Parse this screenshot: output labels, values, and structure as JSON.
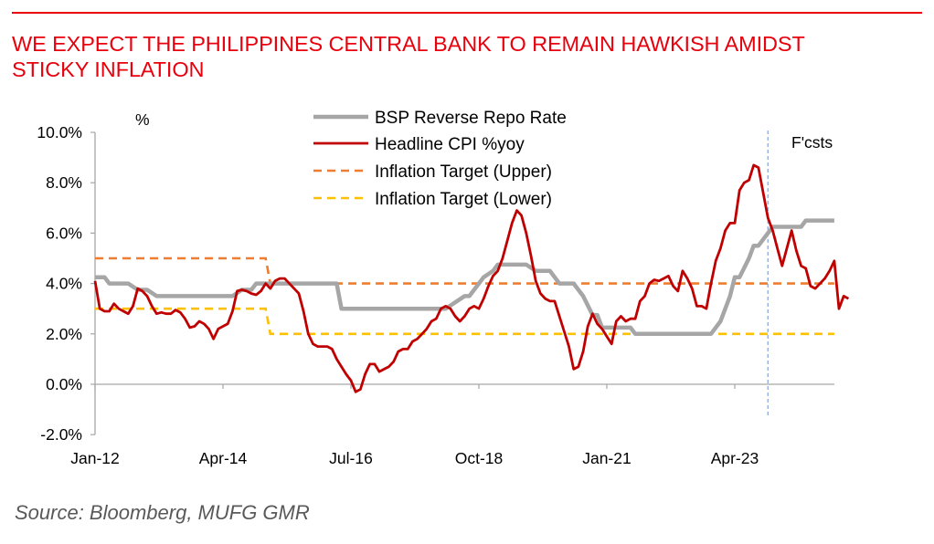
{
  "header": {
    "title_line1": "WE EXPECT THE PHILIPPINES CENTRAL BANK TO REMAIN HAWKISH AMIDST",
    "title_line2": "STICKY INFLATION"
  },
  "footer": {
    "source": "Source: Bloomberg, MUFG GMR"
  },
  "colors": {
    "title": "#e8000d",
    "repo": "#a6a6a6",
    "cpi": "#c00000",
    "upper": "#ed7d31",
    "lower": "#ffc000",
    "forecast_line": "#8eaadb"
  },
  "chart_data": {
    "type": "line",
    "title": "",
    "xlabel": "",
    "ylabel": "%",
    "ylim": [
      -2,
      10
    ],
    "yticks": [
      -2,
      0,
      2,
      4,
      6,
      8,
      10
    ],
    "ytick_labels": [
      "-2.0%",
      "0.0%",
      "2.0%",
      "4.0%",
      "6.0%",
      "8.0%",
      "10.0%"
    ],
    "x_unit": "months since Jan-2012",
    "xlim": [
      0,
      156
    ],
    "xticks": [
      0,
      27,
      54,
      81,
      108,
      135
    ],
    "xtick_labels": [
      "Jan-12",
      "Apr-14",
      "Jul-16",
      "Oct-18",
      "Jan-21",
      "Apr-23"
    ],
    "grid": false,
    "legend_position": "top-center",
    "forecast_marker": {
      "x": 142,
      "label": "F'csts"
    },
    "series": [
      {
        "name": "BSP Reverse Repo Rate",
        "style": "solid-thick",
        "color_key": "repo",
        "points": [
          [
            0,
            4.25
          ],
          [
            2,
            4.25
          ],
          [
            3,
            4.0
          ],
          [
            7,
            4.0
          ],
          [
            9,
            3.75
          ],
          [
            11,
            3.75
          ],
          [
            13,
            3.5
          ],
          [
            29,
            3.5
          ],
          [
            31,
            3.75
          ],
          [
            33,
            3.75
          ],
          [
            34,
            4.0
          ],
          [
            51,
            4.0
          ],
          [
            52,
            3.0
          ],
          [
            74,
            3.0
          ],
          [
            76,
            3.25
          ],
          [
            78,
            3.5
          ],
          [
            79,
            3.5
          ],
          [
            81,
            4.0
          ],
          [
            82,
            4.25
          ],
          [
            84,
            4.5
          ],
          [
            85,
            4.75
          ],
          [
            91,
            4.75
          ],
          [
            93,
            4.5
          ],
          [
            96,
            4.5
          ],
          [
            98,
            4.0
          ],
          [
            101,
            4.0
          ],
          [
            103,
            3.5
          ],
          [
            105,
            2.75
          ],
          [
            106,
            2.75
          ],
          [
            107,
            2.25
          ],
          [
            113,
            2.25
          ],
          [
            114,
            2.0
          ],
          [
            130,
            2.0
          ],
          [
            132,
            2.5
          ],
          [
            134,
            3.5
          ],
          [
            135,
            4.25
          ],
          [
            136,
            4.25
          ],
          [
            138,
            5.0
          ],
          [
            139,
            5.5
          ],
          [
            140,
            5.5
          ],
          [
            142,
            6.0
          ],
          [
            143,
            6.25
          ],
          [
            149,
            6.25
          ],
          [
            150,
            6.5
          ],
          [
            150,
            6.5
          ],
          [
            154,
            6.5
          ],
          [
            155,
            6.5
          ],
          [
            156,
            6.5
          ]
        ]
      },
      {
        "name": "Headline CPI %yoy",
        "style": "solid",
        "color_key": "cpi",
        "points": [
          [
            0,
            4.1
          ],
          [
            1,
            3.0
          ],
          [
            2,
            2.9
          ],
          [
            3,
            2.9
          ],
          [
            4,
            3.2
          ],
          [
            5,
            3.0
          ],
          [
            6,
            2.9
          ],
          [
            7,
            2.8
          ],
          [
            8,
            3.1
          ],
          [
            9,
            3.8
          ],
          [
            10,
            3.7
          ],
          [
            11,
            3.5
          ],
          [
            12,
            3.1
          ],
          [
            13,
            2.8
          ],
          [
            14,
            2.85
          ],
          [
            15,
            2.8
          ],
          [
            16,
            2.8
          ],
          [
            17,
            2.95
          ],
          [
            18,
            2.85
          ],
          [
            19,
            2.6
          ],
          [
            20,
            2.25
          ],
          [
            21,
            2.3
          ],
          [
            22,
            2.5
          ],
          [
            23,
            2.4
          ],
          [
            24,
            2.2
          ],
          [
            25,
            1.8
          ],
          [
            26,
            2.2
          ],
          [
            27,
            2.3
          ],
          [
            28,
            2.4
          ],
          [
            29,
            2.9
          ],
          [
            30,
            3.7
          ],
          [
            31,
            3.75
          ],
          [
            32,
            3.7
          ],
          [
            33,
            3.6
          ],
          [
            34,
            3.55
          ],
          [
            35,
            3.7
          ],
          [
            36,
            4.0
          ],
          [
            37,
            3.8
          ],
          [
            38,
            4.1
          ],
          [
            39,
            4.2
          ],
          [
            40,
            4.2
          ],
          [
            41,
            4.0
          ],
          [
            42,
            3.8
          ],
          [
            43,
            3.6
          ],
          [
            44,
            2.9
          ],
          [
            45,
            2.0
          ],
          [
            46,
            1.6
          ],
          [
            47,
            1.5
          ],
          [
            48,
            1.5
          ],
          [
            49,
            1.5
          ],
          [
            50,
            1.4
          ],
          [
            51,
            1.0
          ],
          [
            52,
            0.7
          ],
          [
            53,
            0.4
          ],
          [
            54,
            0.15
          ],
          [
            55,
            -0.3
          ],
          [
            56,
            -0.2
          ],
          [
            57,
            0.4
          ],
          [
            58,
            0.8
          ],
          [
            59,
            0.8
          ],
          [
            60,
            0.5
          ],
          [
            61,
            0.6
          ],
          [
            62,
            0.7
          ],
          [
            63,
            0.9
          ],
          [
            64,
            1.3
          ],
          [
            65,
            1.4
          ],
          [
            66,
            1.4
          ],
          [
            67,
            1.7
          ],
          [
            68,
            1.8
          ],
          [
            69,
            2.0
          ],
          [
            70,
            2.2
          ],
          [
            71,
            2.5
          ],
          [
            72,
            2.6
          ],
          [
            73,
            3.0
          ],
          [
            74,
            3.1
          ],
          [
            75,
            3.0
          ],
          [
            76,
            2.7
          ],
          [
            77,
            2.5
          ],
          [
            78,
            2.7
          ],
          [
            79,
            3.0
          ],
          [
            80,
            3.1
          ],
          [
            81,
            3.0
          ],
          [
            82,
            3.4
          ],
          [
            83,
            3.9
          ],
          [
            84,
            4.3
          ],
          [
            85,
            4.5
          ],
          [
            86,
            5.0
          ],
          [
            87,
            5.7
          ],
          [
            88,
            6.4
          ],
          [
            89,
            6.9
          ],
          [
            90,
            6.7
          ],
          [
            91,
            6.0
          ],
          [
            92,
            5.1
          ],
          [
            93,
            4.1
          ],
          [
            94,
            3.6
          ],
          [
            95,
            3.4
          ],
          [
            96,
            3.3
          ],
          [
            97,
            3.3
          ],
          [
            98,
            2.7
          ],
          [
            99,
            2.1
          ],
          [
            100,
            1.5
          ],
          [
            101,
            0.6
          ],
          [
            102,
            0.7
          ],
          [
            103,
            1.3
          ],
          [
            104,
            2.3
          ],
          [
            105,
            2.8
          ],
          [
            106,
            2.4
          ],
          [
            107,
            2.2
          ],
          [
            108,
            1.9
          ],
          [
            109,
            1.6
          ],
          [
            110,
            2.5
          ],
          [
            111,
            2.7
          ],
          [
            112,
            2.5
          ],
          [
            113,
            2.6
          ],
          [
            114,
            2.6
          ],
          [
            115,
            3.3
          ],
          [
            116,
            3.5
          ],
          [
            117,
            4.0
          ],
          [
            118,
            4.15
          ],
          [
            119,
            4.1
          ],
          [
            120,
            4.2
          ],
          [
            121,
            4.3
          ],
          [
            122,
            3.9
          ],
          [
            123,
            3.7
          ],
          [
            124,
            4.5
          ],
          [
            125,
            4.2
          ],
          [
            126,
            3.8
          ],
          [
            127,
            3.1
          ],
          [
            128,
            3.1
          ],
          [
            129,
            3.0
          ],
          [
            130,
            4.0
          ],
          [
            131,
            4.9
          ],
          [
            132,
            5.4
          ],
          [
            133,
            6.1
          ],
          [
            134,
            6.4
          ],
          [
            135,
            6.4
          ],
          [
            136,
            7.7
          ],
          [
            137,
            8.0
          ],
          [
            138,
            8.1
          ],
          [
            139,
            8.7
          ],
          [
            140,
            8.6
          ],
          [
            141,
            7.6
          ],
          [
            142,
            6.6
          ],
          [
            143,
            6.1
          ],
          [
            144,
            5.4
          ],
          [
            145,
            4.7
          ],
          [
            146,
            5.4
          ],
          [
            147,
            6.1
          ],
          [
            148,
            5.3
          ],
          [
            149,
            4.7
          ],
          [
            150,
            4.6
          ],
          [
            151,
            3.9
          ],
          [
            152,
            3.8
          ],
          [
            153,
            4.0
          ],
          [
            154,
            4.2
          ],
          [
            155,
            4.5
          ],
          [
            156,
            4.9
          ],
          [
            157,
            3.0
          ],
          [
            158,
            3.5
          ],
          [
            159,
            3.4
          ]
        ]
      },
      {
        "name": "Inflation Target (Upper)",
        "style": "dashed",
        "color_key": "upper",
        "points": [
          [
            0,
            5.0
          ],
          [
            36,
            5.0
          ],
          [
            37,
            4.0
          ],
          [
            156,
            4.0
          ]
        ]
      },
      {
        "name": "Inflation Target (Lower)",
        "style": "dashed",
        "color_key": "lower",
        "points": [
          [
            0,
            3.0
          ],
          [
            36,
            3.0
          ],
          [
            37,
            2.0
          ],
          [
            156,
            2.0
          ]
        ]
      }
    ]
  }
}
